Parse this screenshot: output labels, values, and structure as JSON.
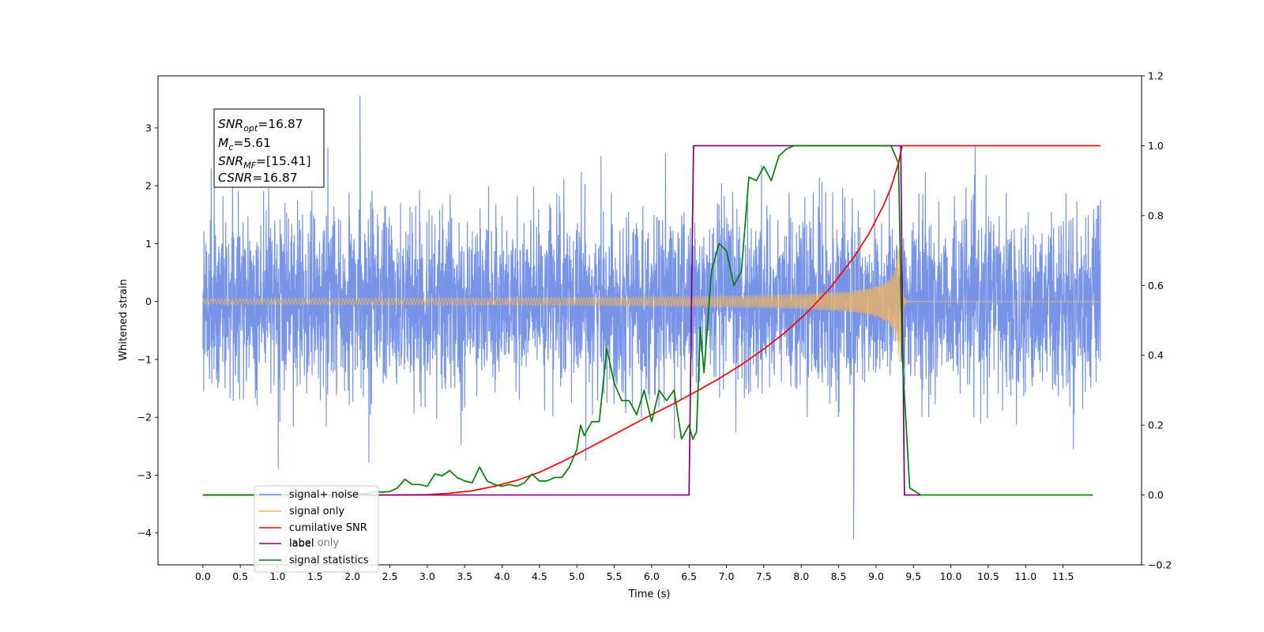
{
  "chart_data": {
    "type": "line",
    "xlabel": "Time (s)",
    "ylabel": "Whitened strain",
    "x_ticks": [
      "0.0",
      "0.5",
      "1.0",
      "1.5",
      "2.0",
      "2.5",
      "3.0",
      "3.5",
      "4.0",
      "4.5",
      "5.0",
      "5.5",
      "6.0",
      "6.5",
      "7.0",
      "7.5",
      "8.0",
      "8.5",
      "9.0",
      "9.5",
      "10.0",
      "10.5",
      "11.0",
      "11.5"
    ],
    "xlim": [
      -0.6,
      12.55
    ],
    "ylim_left": [
      -4.55,
      3.9
    ],
    "ylim_right": [
      -0.2,
      1.2
    ],
    "y_ticks_left": [
      "3",
      "2",
      "1",
      "0",
      "−1",
      "−2",
      "−3",
      "−4"
    ],
    "y_ticks_right": [
      "1.2",
      "1.0",
      "0.8",
      "0.6",
      "0.4",
      "0.2",
      "0.0",
      "−0.2"
    ],
    "annotation": {
      "snr_opt": {
        "sym": "SNR",
        "sub": "opt",
        "val": "=16.87"
      },
      "mc": {
        "sym": "M",
        "sub": "c",
        "val": "=5.61"
      },
      "snr_mf": {
        "sym": "SNR",
        "sub": "MF",
        "val": "=[15.41]"
      },
      "csnr": {
        "sym": "CSNR",
        "val": "=16.87"
      }
    },
    "legend": [
      "signal+ noise",
      "signal only",
      "cumilative SNR",
      "label",
      "signal statistics"
    ],
    "legend_shadow_text": "label only",
    "series": [
      {
        "name": "signal+ noise",
        "axis": "left",
        "color": "#6b8be6",
        "kind": "noise",
        "x_range": [
          0,
          12.0
        ],
        "spread_sigma": 0.75,
        "peak_max": 3.55,
        "peak_min": -4.1,
        "peak_max_x": 2.1,
        "peak_min_x": 8.7
      },
      {
        "name": "signal only",
        "axis": "left",
        "color": "#f2b45c",
        "kind": "chirp",
        "x_range": [
          0,
          12.0
        ],
        "merger_x": 9.32,
        "peak_amplitude": 1.05,
        "ringdown_end_x": 9.45
      },
      {
        "name": "cumilative SNR",
        "axis": "right",
        "color": "#ff0000",
        "x": [
          0,
          2.5,
          3.0,
          3.3,
          3.6,
          3.9,
          4.2,
          4.5,
          4.8,
          5.1,
          5.4,
          5.7,
          6.0,
          6.3,
          6.6,
          6.9,
          7.2,
          7.5,
          7.8,
          8.1,
          8.4,
          8.7,
          8.9,
          9.1,
          9.2,
          9.3,
          9.35,
          12.0
        ],
        "y": [
          0,
          0,
          0.001,
          0.005,
          0.012,
          0.025,
          0.042,
          0.065,
          0.095,
          0.128,
          0.162,
          0.196,
          0.23,
          0.262,
          0.297,
          0.333,
          0.373,
          0.418,
          0.468,
          0.527,
          0.596,
          0.68,
          0.746,
          0.829,
          0.88,
          0.95,
          1.0,
          1.0
        ]
      },
      {
        "name": "label",
        "axis": "right",
        "color": "#7b007b",
        "x": [
          0,
          6.5,
          6.56,
          9.33,
          9.38,
          9.6
        ],
        "y": [
          0,
          0,
          1,
          1,
          0,
          0
        ]
      },
      {
        "name": "signal statistics",
        "axis": "right",
        "color": "#008000",
        "x": [
          0,
          2.0,
          2.2,
          2.3,
          2.4,
          2.5,
          2.6,
          2.7,
          2.8,
          2.9,
          3.0,
          3.1,
          3.2,
          3.3,
          3.4,
          3.5,
          3.6,
          3.7,
          3.8,
          3.9,
          4.0,
          4.1,
          4.2,
          4.3,
          4.4,
          4.5,
          4.6,
          4.7,
          4.8,
          4.9,
          5.0,
          5.05,
          5.1,
          5.2,
          5.3,
          5.4,
          5.5,
          5.6,
          5.7,
          5.8,
          5.9,
          6.0,
          6.1,
          6.2,
          6.3,
          6.4,
          6.5,
          6.55,
          6.6,
          6.65,
          6.7,
          6.8,
          6.9,
          7.0,
          7.1,
          7.2,
          7.3,
          7.4,
          7.5,
          7.6,
          7.7,
          7.8,
          7.9,
          8.0,
          9.0,
          9.2,
          9.3,
          9.35,
          9.45,
          9.6,
          11.9
        ],
        "y": [
          0,
          0,
          0.005,
          0.01,
          0.008,
          0.01,
          0.02,
          0.045,
          0.03,
          0.03,
          0.025,
          0.06,
          0.055,
          0.07,
          0.05,
          0.04,
          0.035,
          0.08,
          0.04,
          0.03,
          0.025,
          0.03,
          0.025,
          0.035,
          0.06,
          0.04,
          0.04,
          0.05,
          0.05,
          0.08,
          0.13,
          0.2,
          0.17,
          0.21,
          0.21,
          0.42,
          0.32,
          0.27,
          0.27,
          0.23,
          0.3,
          0.21,
          0.3,
          0.27,
          0.3,
          0.16,
          0.2,
          0.16,
          0.18,
          0.48,
          0.35,
          0.64,
          0.72,
          0.7,
          0.6,
          0.64,
          0.91,
          0.9,
          0.94,
          0.9,
          0.97,
          0.99,
          1.0,
          1.0,
          1.0,
          1.0,
          0.95,
          0.4,
          0.02,
          0,
          0
        ]
      }
    ]
  }
}
